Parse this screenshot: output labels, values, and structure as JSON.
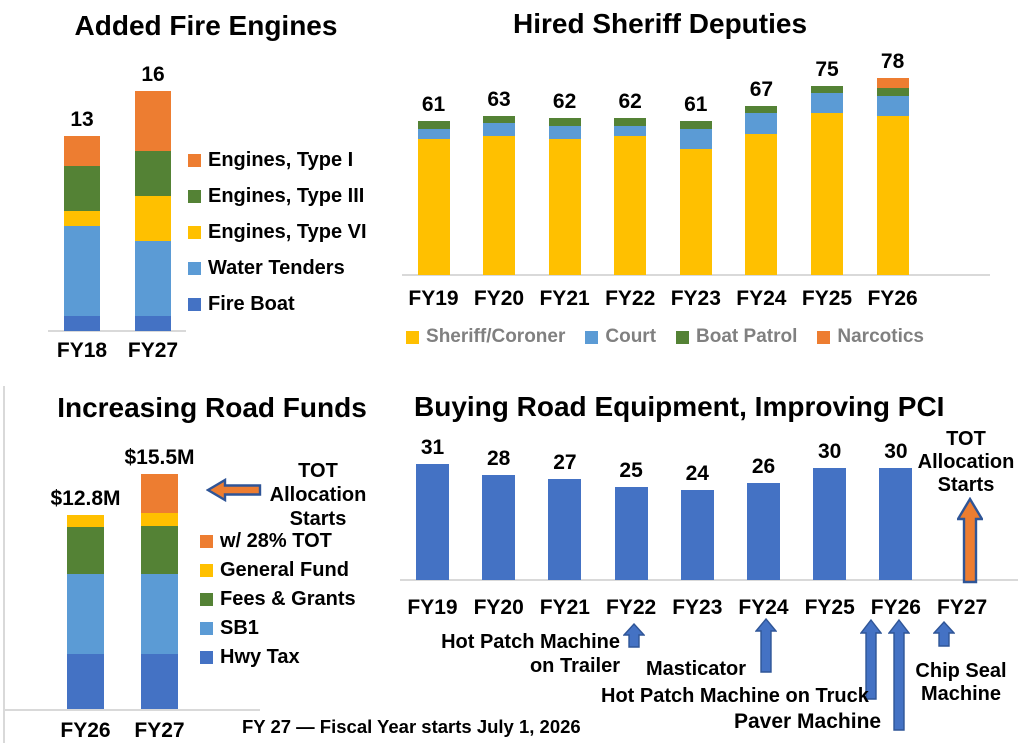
{
  "colors": {
    "orange": "#ED7D31",
    "yellow": "#FFC000",
    "green": "#548235",
    "light_blue": "#5B9BD5",
    "dark_blue": "#4472C4",
    "arrow_blue": "#4472C4",
    "arrow_outline": "#2F5597",
    "axis_gray": "#D9D9D9",
    "legend_text_gray": "#808080",
    "text_black": "#000000",
    "background": "#FFFFFF"
  },
  "chart_data": [
    {
      "id": "fire",
      "type": "bar",
      "stacked": true,
      "title": "Added Fire Engines",
      "categories": [
        "FY18",
        "FY27"
      ],
      "total_labels": [
        "13",
        "16"
      ],
      "series": [
        {
          "name": "Fire Boat",
          "color_key": "dark_blue",
          "values": [
            1,
            1
          ]
        },
        {
          "name": "Water Tenders",
          "color_key": "light_blue",
          "values": [
            6,
            5
          ]
        },
        {
          "name": "Engines, Type VI",
          "color_key": "yellow",
          "values": [
            1,
            3
          ]
        },
        {
          "name": "Engines, Type III",
          "color_key": "green",
          "values": [
            3,
            3
          ]
        },
        {
          "name": "Engines, Type I",
          "color_key": "orange",
          "values": [
            2,
            4
          ]
        }
      ],
      "legend_position": "right",
      "legend_order": "reversed"
    },
    {
      "id": "sheriff",
      "type": "bar",
      "stacked": true,
      "title": "Hired Sheriff Deputies",
      "categories": [
        "FY19",
        "FY20",
        "FY21",
        "FY22",
        "FY23",
        "FY24",
        "FY25",
        "FY26"
      ],
      "total_labels": [
        "61",
        "63",
        "62",
        "62",
        "61",
        "67",
        "75",
        "78"
      ],
      "series": [
        {
          "name": "Sheriff/Coroner",
          "color_key": "yellow",
          "values": [
            54,
            55,
            54,
            55,
            50,
            56,
            64,
            63
          ]
        },
        {
          "name": "Court",
          "color_key": "light_blue",
          "values": [
            4,
            5,
            5,
            4,
            8,
            8,
            8,
            8
          ]
        },
        {
          "name": "Boat Patrol",
          "color_key": "green",
          "values": [
            3,
            3,
            3,
            3,
            3,
            3,
            3,
            3
          ]
        },
        {
          "name": "Narcotics",
          "color_key": "orange",
          "values": [
            0,
            0,
            0,
            0,
            0,
            0,
            0,
            4
          ]
        }
      ],
      "legend_position": "bottom",
      "legend_order": "normal"
    },
    {
      "id": "road_funds",
      "type": "bar",
      "stacked": true,
      "title": "Increasing Road Funds",
      "categories": [
        "FY26",
        "FY27"
      ],
      "total_labels": [
        "$12.8M",
        "$15.5M"
      ],
      "series": [
        {
          "name": "Hwy Tax",
          "color_key": "dark_blue",
          "values": [
            3.6,
            3.6
          ]
        },
        {
          "name": "SB1",
          "color_key": "light_blue",
          "values": [
            5.3,
            5.3
          ]
        },
        {
          "name": "Fees & Grants",
          "color_key": "green",
          "values": [
            3.1,
            3.2
          ]
        },
        {
          "name": "General Fund",
          "color_key": "yellow",
          "values": [
            0.8,
            0.8
          ]
        },
        {
          "name": "w/ 28% TOT",
          "color_key": "orange",
          "values": [
            0,
            2.6
          ]
        }
      ],
      "legend_position": "right",
      "legend_order": "reversed"
    },
    {
      "id": "equipment",
      "type": "bar",
      "stacked": false,
      "title": "Buying Road Equipment, Improving PCI",
      "categories": [
        "FY19",
        "FY20",
        "FY21",
        "FY22",
        "FY23",
        "FY24",
        "FY25",
        "FY26",
        "FY27"
      ],
      "values": [
        31,
        28,
        27,
        25,
        24,
        26,
        30,
        30,
        null
      ],
      "bar_color_key": "dark_blue"
    }
  ],
  "annotations": {
    "road_tot_arrow": "TOT\nAllocation\nStarts",
    "equipment_tot_arrow": "TOT\nAllocation\nStarts",
    "hot_patch_trailer": "Hot Patch Machine\non Trailer",
    "masticator": "Masticator",
    "hot_patch_truck": "Hot Patch Machine on Truck",
    "paver": "Paver Machine",
    "chip_seal": "Chip Seal\nMachine"
  },
  "footnote": "FY 27 — Fiscal Year starts July 1, 2026"
}
